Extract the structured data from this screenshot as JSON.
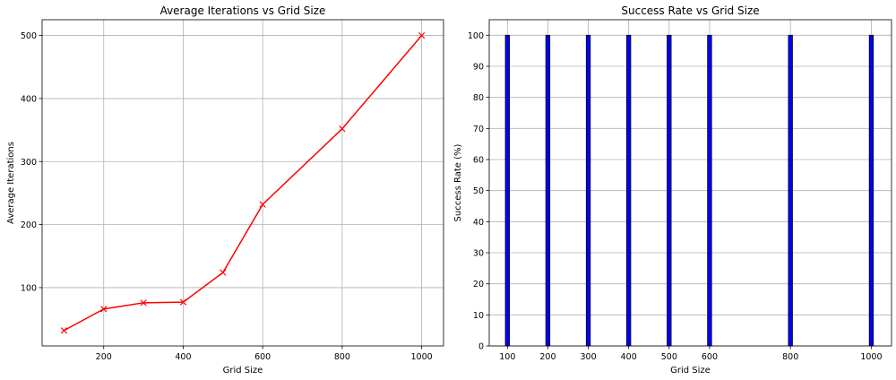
{
  "chart_data": [
    {
      "type": "line",
      "title": "Average Iterations vs Grid Size",
      "xlabel": "Grid Size",
      "ylabel": "Average Iterations",
      "x": [
        100,
        200,
        300,
        400,
        500,
        600,
        800,
        1000
      ],
      "series": [
        {
          "values": [
            32,
            66,
            76,
            77,
            124,
            232,
            352,
            500
          ],
          "color": "#ff0000",
          "marker": "x"
        }
      ],
      "xlim": [
        45,
        1055
      ],
      "ylim": [
        7.5,
        525
      ],
      "xticks": [
        200,
        400,
        600,
        800,
        1000
      ],
      "yticks": [
        100,
        200,
        300,
        400,
        500
      ],
      "grid": true
    },
    {
      "type": "bar",
      "title": "Success Rate vs Grid Size",
      "xlabel": "Grid Size",
      "ylabel": "Success Rate (%)",
      "x": [
        100,
        200,
        300,
        400,
        500,
        600,
        800,
        1000
      ],
      "values": [
        100,
        100,
        100,
        100,
        100,
        100,
        100,
        100
      ],
      "bar_width": 10,
      "color": "#0000ff",
      "edgecolor": "#000000",
      "xlim": [
        55,
        1050
      ],
      "ylim": [
        0,
        105
      ],
      "xticks": [
        100,
        200,
        300,
        400,
        500,
        600,
        800,
        1000
      ],
      "yticks": [
        0,
        10,
        20,
        30,
        40,
        50,
        60,
        70,
        80,
        90,
        100
      ],
      "grid": true
    }
  ]
}
